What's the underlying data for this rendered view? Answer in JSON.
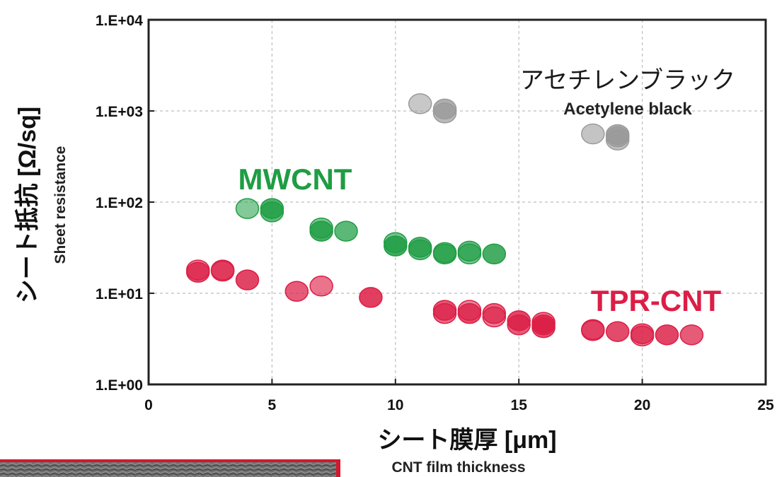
{
  "chart_data": {
    "type": "scatter",
    "x_axis": {
      "label": "シート膜厚 [μm]",
      "sublabel": "CNT film thickness",
      "range": [
        0,
        25
      ],
      "ticks": [
        0,
        5,
        10,
        15,
        20,
        25
      ],
      "tick_labels": [
        "0",
        "5",
        "10",
        "15",
        "20",
        "25"
      ]
    },
    "y_axis": {
      "label": "シート抵抗 [Ω/sq]",
      "sublabel": "Sheet resistance",
      "scale": "log",
      "range": [
        1,
        10000
      ],
      "ticks": [
        1,
        10,
        100,
        1000,
        10000
      ],
      "tick_labels": [
        "1.E+00",
        "1.E+01",
        "1.E+02",
        "1.E+03",
        "1.E+04"
      ]
    },
    "grid": true,
    "series": [
      {
        "name": "アセチレンブラック",
        "subname": "Acetylene black",
        "color": "#9a9a9a",
        "points": [
          [
            11,
            1200
          ],
          [
            12,
            1050
          ],
          [
            12,
            950
          ],
          [
            18,
            560
          ],
          [
            19,
            550
          ],
          [
            19,
            520
          ],
          [
            19,
            480
          ]
        ]
      },
      {
        "name": "MWCNT",
        "color": "#1f9d44",
        "points": [
          [
            4,
            85
          ],
          [
            5,
            85
          ],
          [
            5,
            78
          ],
          [
            7,
            52
          ],
          [
            7,
            48
          ],
          [
            8,
            48
          ],
          [
            10,
            36
          ],
          [
            10,
            33
          ],
          [
            11,
            32
          ],
          [
            11,
            30
          ],
          [
            12,
            28
          ],
          [
            12,
            27
          ],
          [
            13,
            29
          ],
          [
            13,
            27
          ],
          [
            14,
            27
          ]
        ]
      },
      {
        "name": "TPR-CNT",
        "color": "#dc1e46",
        "points": [
          [
            2,
            18
          ],
          [
            2,
            17
          ],
          [
            3,
            18
          ],
          [
            3,
            17.5
          ],
          [
            4,
            14
          ],
          [
            6,
            10.5
          ],
          [
            7,
            12
          ],
          [
            9,
            9
          ],
          [
            12,
            6.5
          ],
          [
            12,
            6
          ],
          [
            13,
            6.5
          ],
          [
            13,
            6
          ],
          [
            14,
            6
          ],
          [
            14,
            5.5
          ],
          [
            15,
            5
          ],
          [
            15,
            4.5
          ],
          [
            16,
            4.8
          ],
          [
            16,
            4.5
          ],
          [
            16,
            4.2
          ],
          [
            18,
            4
          ],
          [
            18,
            3.9
          ],
          [
            19,
            3.8
          ],
          [
            20,
            3.6
          ],
          [
            20,
            3.4
          ],
          [
            21,
            3.5
          ],
          [
            22,
            3.5
          ]
        ]
      }
    ]
  }
}
